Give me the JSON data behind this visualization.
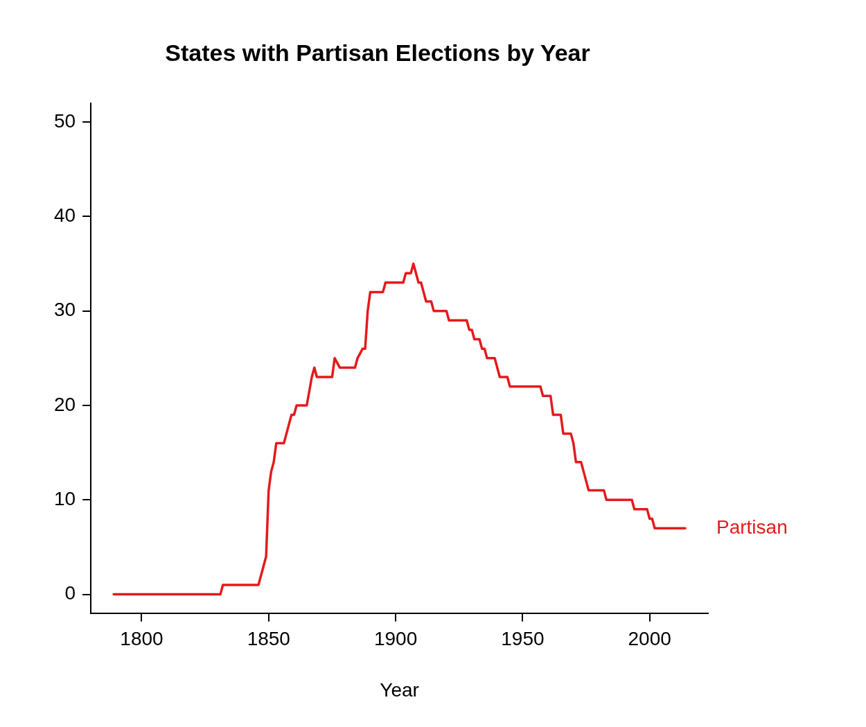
{
  "chart_data": {
    "type": "line",
    "title": "States with Partisan Elections by Year",
    "xlabel": "Year",
    "series": [
      {
        "name": "Partisan",
        "color": "#e41a1c",
        "x": [
          1789,
          1831,
          1832,
          1846,
          1847,
          1849,
          1850,
          1851,
          1852,
          1853,
          1856,
          1857,
          1859,
          1860,
          1861,
          1865,
          1867,
          1868,
          1869,
          1875,
          1876,
          1878,
          1884,
          1885,
          1887,
          1888,
          1889,
          1890,
          1895,
          1896,
          1903,
          1904,
          1906,
          1907,
          1909,
          1910,
          1911,
          1912,
          1914,
          1915,
          1920,
          1921,
          1928,
          1929,
          1930,
          1931,
          1933,
          1934,
          1935,
          1936,
          1939,
          1941,
          1944,
          1945,
          1957,
          1958,
          1961,
          1962,
          1965,
          1966,
          1969,
          1970,
          1971,
          1973,
          1974,
          1976,
          1982,
          1983,
          1993,
          1994,
          1999,
          2000,
          2001,
          2002,
          2014
        ],
        "values": [
          0,
          0,
          1,
          1,
          2,
          4,
          11,
          13,
          14,
          16,
          16,
          17,
          19,
          19,
          20,
          20,
          23,
          24,
          23,
          23,
          25,
          24,
          24,
          25,
          26,
          26,
          30,
          32,
          32,
          33,
          33,
          34,
          34,
          35,
          33,
          33,
          32,
          31,
          31,
          30,
          30,
          29,
          29,
          28,
          28,
          27,
          27,
          26,
          26,
          25,
          25,
          23,
          23,
          22,
          22,
          21,
          21,
          19,
          19,
          17,
          17,
          16,
          14,
          14,
          13,
          11,
          11,
          10,
          10,
          9,
          9,
          8,
          8,
          7,
          7
        ]
      }
    ],
    "xlim": [
      1780,
      2023
    ],
    "xticks": [
      1800,
      1850,
      1900,
      1950,
      2000
    ],
    "ylim": [
      -2,
      52
    ],
    "yticks": [
      0,
      10,
      20,
      30,
      40,
      50
    ],
    "grid": false,
    "legend": false,
    "line_style": "solid",
    "marker": "none"
  }
}
